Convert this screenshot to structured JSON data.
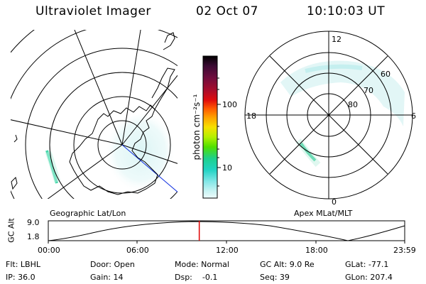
{
  "header": {
    "title": "Ultraviolet Imager",
    "date": "02 Oct 07",
    "time": "10:10:03 UT"
  },
  "left_map": {
    "label": "Geographic Lat/Lon"
  },
  "right_map": {
    "label": "Apex  MLat/MLT",
    "mlt_labels": {
      "top": "12",
      "left": "18",
      "right": "6",
      "bottom": "0"
    },
    "mlat_labels": [
      "60",
      "70",
      "80"
    ]
  },
  "colorbar": {
    "unit_label": "photon cm⁻²s⁻¹",
    "ticks": [
      "100",
      "10"
    ],
    "colors": [
      "#000000",
      "#3b0a33",
      "#6e0d3e",
      "#a80d2c",
      "#e00d0d",
      "#ff5a00",
      "#ffa000",
      "#f7e000",
      "#b4f000",
      "#4fe000",
      "#1ed08c",
      "#20d3c3",
      "#7fe6e6",
      "#c8f3f3",
      "#eefcfc"
    ]
  },
  "altitude_plot": {
    "ylabel": "GC Alt",
    "yticks": [
      "9.0",
      "1.8"
    ],
    "xticks": [
      "00:00",
      "06:00",
      "12:00",
      "18:00",
      "23:59"
    ],
    "current_time_fraction": 0.4236
  },
  "footer": {
    "flt": "Flt: LBHL",
    "ip": "IP: 36.0",
    "door": "Door: Open",
    "gain": "Gain: 14",
    "mode": "Mode: Normal",
    "dsp": "Dsp:    -0.1",
    "gcalt": "GC Alt: 9.0 Re",
    "seq": "Seq: 39",
    "glat": "GLat: -77.1",
    "glon": "GLon: 207.4"
  }
}
